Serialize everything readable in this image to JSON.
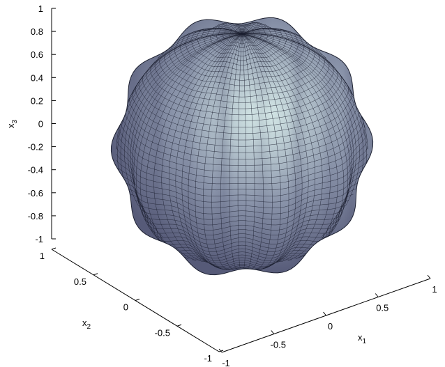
{
  "chart_data": {
    "type": "surface",
    "title": "",
    "xlabel": {
      "base": "x",
      "sub": "1"
    },
    "ylabel": {
      "base": "x",
      "sub": "2"
    },
    "zlabel": {
      "base": "x",
      "sub": "3"
    },
    "xlim": [
      -1,
      1
    ],
    "ylim": [
      -1,
      1
    ],
    "zlim": [
      -1,
      1
    ],
    "x_ticks": [
      "-1",
      "-0.5",
      "0",
      "0.5",
      "1"
    ],
    "y_ticks": [
      "-1",
      "-0.5",
      "0",
      "0.5",
      "1"
    ],
    "z_ticks": [
      "-1",
      "-0.8",
      "-0.6",
      "-0.4",
      "-0.2",
      "0",
      "0.2",
      "0.4",
      "0.6",
      "0.8",
      "1"
    ],
    "surface": {
      "shape": "rippled sphere",
      "base_radius": 0.85,
      "ripple_amplitude": 0.05,
      "ripple_count": 10,
      "grid": "off",
      "colormap": "bone",
      "base_color": "#8a94aa",
      "highlight_color": "#d8ecea",
      "shadow_color": "#565a78",
      "edge_color": "#1c2030"
    }
  }
}
